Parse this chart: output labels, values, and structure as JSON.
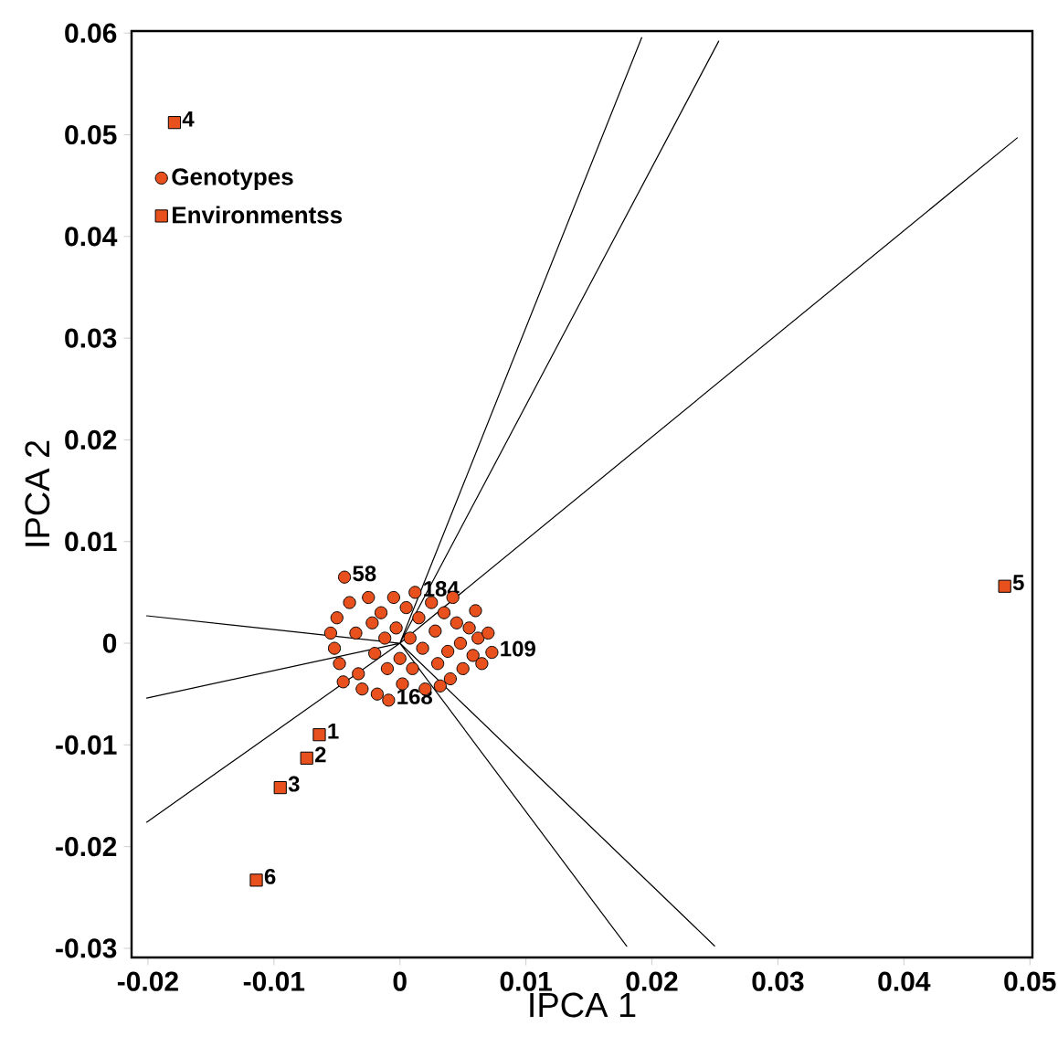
{
  "chart_data": {
    "type": "scatter",
    "xlabel": "IPCA 1",
    "ylabel": "IPCA 2",
    "xlim": [
      -0.0213,
      0.0502
    ],
    "ylim": [
      -0.0309,
      0.0602
    ],
    "xticks": [
      -0.02,
      -0.01,
      0,
      0.01,
      0.02,
      0.03,
      0.04,
      0.05
    ],
    "yticks": [
      -0.03,
      -0.02,
      -0.01,
      0,
      0.01,
      0.02,
      0.03,
      0.04,
      0.05,
      0.06
    ],
    "legend": "top left",
    "grid": false,
    "series": [
      {
        "type": "line",
        "color": "#000000",
        "marker": "none",
        "x": [
          0.0192,
          0,
          0.0253,
          0,
          0.049,
          0,
          -0.0201,
          0,
          -0.0201,
          0,
          -0.0201,
          0,
          0.018,
          0,
          0.025
        ],
        "values": [
          0.0596,
          0,
          0.0592,
          0,
          0.0497,
          0,
          0.0027,
          0,
          -0.0054,
          0,
          -0.0176,
          0,
          -0.0298,
          0,
          -0.0298
        ]
      },
      {
        "name": "Genotypes",
        "marker": "circle",
        "color": "#e8501e",
        "x": [
          -0.0044,
          0.0012,
          0.0073,
          -0.0009,
          -0.005,
          -0.0052,
          -0.0048,
          -0.004,
          -0.0035,
          -0.0033,
          -0.003,
          -0.0025,
          -0.0022,
          -0.002,
          -0.0018,
          -0.0015,
          -0.0012,
          -0.001,
          -0.0005,
          -0.0003,
          0,
          0.0002,
          0.0005,
          0.0008,
          0.001,
          0.0015,
          0.0018,
          0.002,
          0.0025,
          0.0028,
          0.003,
          0.0035,
          0.0038,
          0.004,
          0.0045,
          0.0048,
          0.005,
          0.0055,
          0.0058,
          0.0062,
          0.0065,
          0.007,
          0.006,
          0.0042,
          0.0032,
          -0.0045,
          -0.0055
        ],
        "values": [
          0.0065,
          0.005,
          -0.0009,
          -0.0056,
          0.0025,
          -0.0005,
          -0.002,
          0.004,
          0.001,
          -0.003,
          -0.0045,
          0.0045,
          0.002,
          -0.001,
          -0.005,
          0.003,
          0.0005,
          -0.0025,
          0.0045,
          0.0015,
          -0.0015,
          -0.004,
          0.0035,
          0.0005,
          -0.0025,
          0.0025,
          -0.0005,
          -0.0045,
          0.004,
          0.0012,
          -0.002,
          0.003,
          -0.0008,
          -0.0035,
          0.002,
          0,
          -0.0025,
          0.0015,
          -0.0012,
          0.0005,
          -0.002,
          0.001,
          0.0032,
          0.0045,
          -0.0042,
          -0.0038,
          0.001
        ]
      },
      {
        "name": "Environmentss",
        "marker": "square",
        "color": "#e8501e",
        "x": [
          -0.0064,
          -0.0074,
          -0.0095,
          -0.0179,
          0.048,
          -0.0114
        ],
        "values": [
          -0.009,
          -0.0113,
          -0.0142,
          0.0512,
          0.0056,
          -0.0233
        ]
      }
    ],
    "annotations": [
      {
        "text": "1",
        "x": -0.0064,
        "y": -0.009
      },
      {
        "text": "2",
        "x": -0.0074,
        "y": -0.0113
      },
      {
        "text": "3",
        "x": -0.0095,
        "y": -0.0142
      },
      {
        "text": "4",
        "x": -0.0179,
        "y": 0.0512
      },
      {
        "text": "5",
        "x": 0.048,
        "y": 0.0056
      },
      {
        "text": "6",
        "x": -0.0114,
        "y": -0.0233
      },
      {
        "text": "58",
        "x": -0.0044,
        "y": 0.0065
      },
      {
        "text": "184",
        "x": 0.0012,
        "y": 0.005
      },
      {
        "text": "109",
        "x": 0.0073,
        "y": -0.0009
      },
      {
        "text": "168",
        "x": -0.0009,
        "y": -0.0056
      }
    ]
  }
}
